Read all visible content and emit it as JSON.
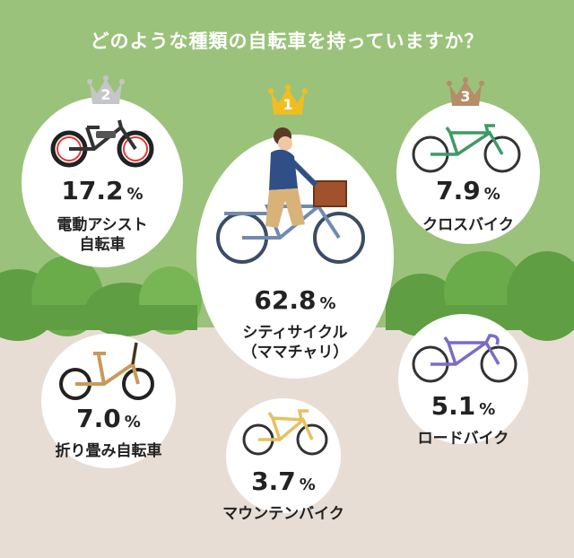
{
  "title": "どのような種類の自転車を持っていますか？",
  "chart_data": {
    "type": "bubble",
    "unit": "%",
    "items": [
      {
        "rank": "1",
        "value": 62.8,
        "value_text": "62.8",
        "label_lines": [
          "シティサイクル",
          "（ママチャリ）"
        ]
      },
      {
        "rank": "2",
        "value": 17.2,
        "value_text": "17.2",
        "label_lines": [
          "電動アシスト",
          "自転車"
        ]
      },
      {
        "rank": "3",
        "value": 7.9,
        "value_text": "7.9",
        "label_lines": [
          "クロスバイク"
        ]
      },
      {
        "rank": "",
        "value": 7.0,
        "value_text": "7.0",
        "label_lines": [
          "折り畳み自転車"
        ]
      },
      {
        "rank": "",
        "value": 5.1,
        "value_text": "5.1",
        "label_lines": [
          "ロードバイク"
        ]
      },
      {
        "rank": "",
        "value": 3.7,
        "value_text": "3.7",
        "label_lines": [
          "マウンテンバイク"
        ]
      }
    ]
  },
  "colors": {
    "sky": "#9bc27a",
    "grass": "#5f9e42",
    "ground": "#e8ddd4",
    "gold": "#f2be1f",
    "silver": "#c4c6c8",
    "bronze": "#b58d69"
  }
}
